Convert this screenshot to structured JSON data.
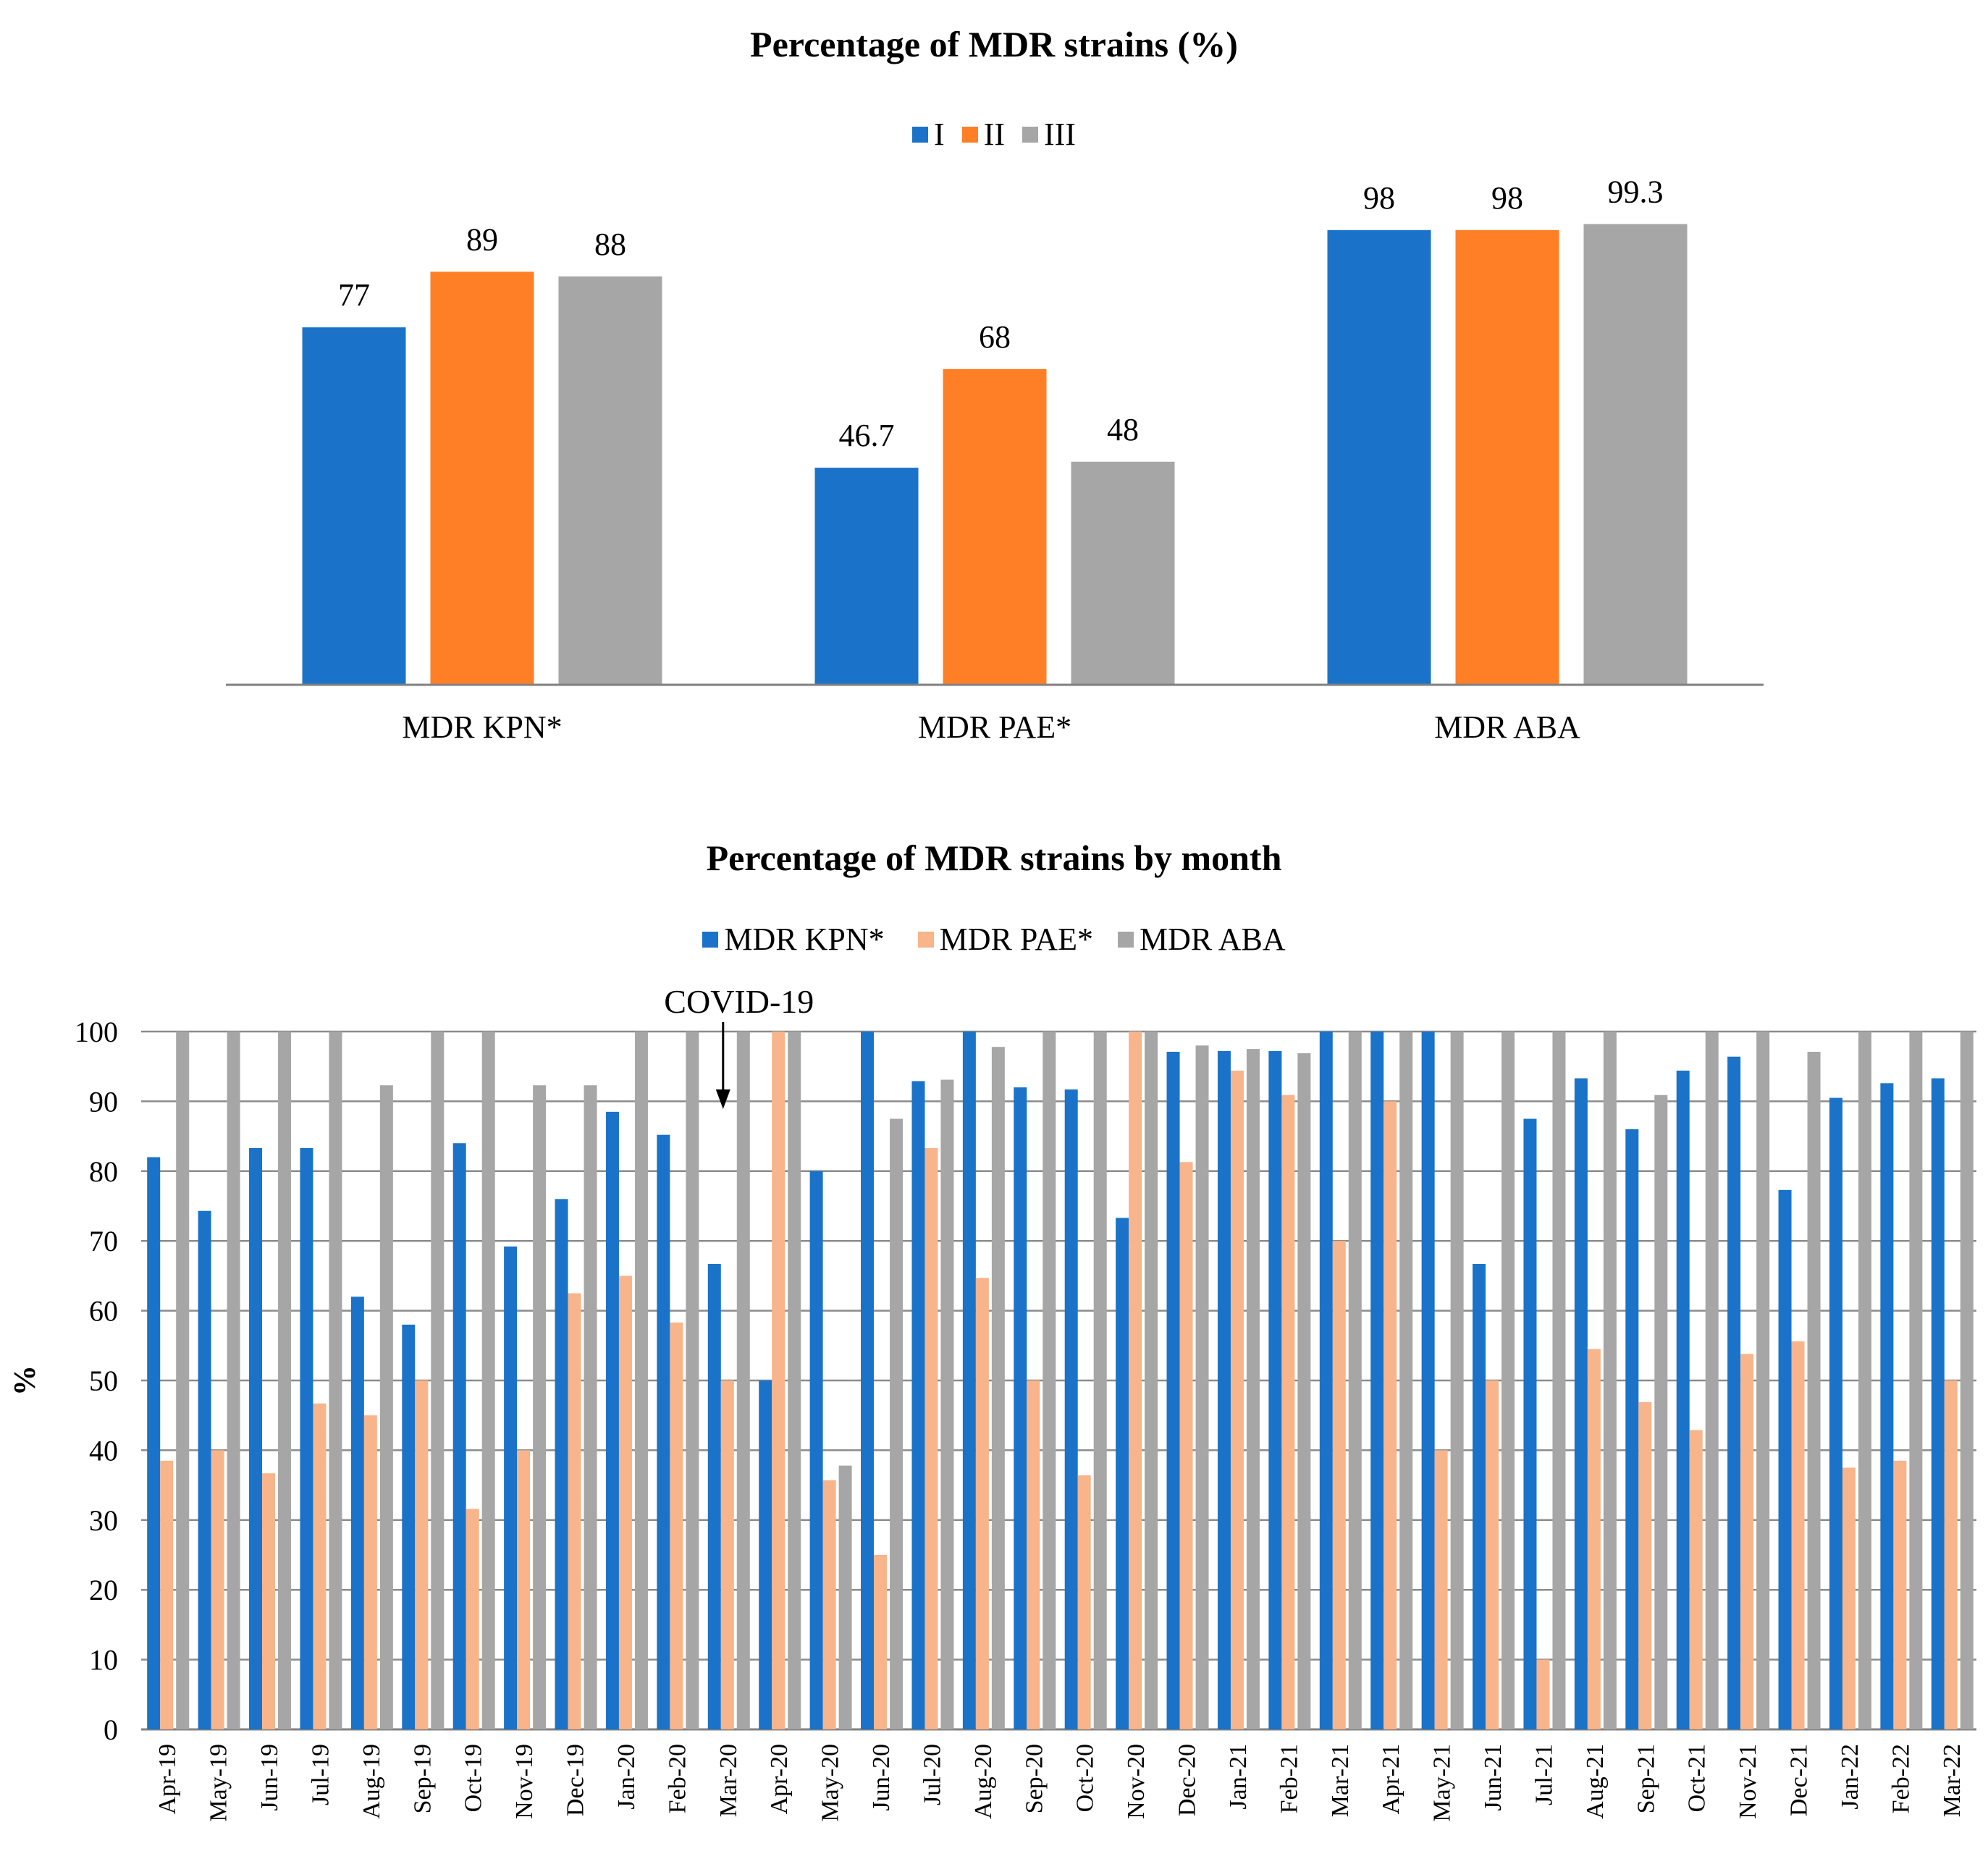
{
  "chart_data": [
    {
      "type": "bar",
      "title": "Percentage of MDR strains (%)",
      "categories": [
        "MDR KPN*",
        "MDR PAE*",
        "MDR ABA"
      ],
      "series": [
        {
          "name": "I",
          "color": "#1a73c8",
          "values": [
            77,
            46.7,
            98
          ]
        },
        {
          "name": "II",
          "color": "#ff7f27",
          "values": [
            89,
            68,
            98
          ]
        },
        {
          "name": "III",
          "color": "#a6a6a6",
          "values": [
            88,
            48,
            99.3
          ]
        }
      ],
      "data_labels": [
        [
          "77",
          "46.7",
          "98"
        ],
        [
          "89",
          "68",
          "98"
        ],
        [
          "88",
          "48",
          "99.3"
        ]
      ],
      "xlabel": "",
      "ylabel": "",
      "ylim": [
        0,
        100
      ],
      "grid": false,
      "legend": "top-center"
    },
    {
      "type": "bar",
      "title": "Percentage of MDR strains by month",
      "categories": [
        "Apr-19",
        "May-19",
        "Jun-19",
        "Jul-19",
        "Aug-19",
        "Sep-19",
        "Oct-19",
        "Nov-19",
        "Dec-19",
        "Jan-20",
        "Feb-20",
        "Mar-20",
        "Apr-20",
        "May-20",
        "Jun-20",
        "Jul-20",
        "Aug-20",
        "Sep-20",
        "Oct-20",
        "Nov-20",
        "Dec-20",
        "Jan-21",
        "Feb-21",
        "Mar-21",
        "Apr-21",
        "May-21",
        "Jun-21",
        "Jul-21",
        "Aug-21",
        "Sep-21",
        "Oct-21",
        "Nov-21",
        "Dec-21",
        "Jan-22",
        "Feb-22",
        "Mar-22"
      ],
      "series": [
        {
          "name": "MDR KPN*",
          "color": "#1a73c8",
          "values": [
            82,
            74.3,
            83.3,
            83.3,
            62,
            58,
            84,
            69.2,
            76,
            88.5,
            85.2,
            66.7,
            50,
            80,
            100,
            92.9,
            100,
            92,
            91.7,
            73.3,
            97.1,
            97.2,
            97.2,
            100,
            100,
            100,
            66.7,
            87.5,
            93.3,
            86,
            94.4,
            96.4,
            77.3,
            90.5,
            92.6,
            93.3
          ]
        },
        {
          "name": "MDR PAE*",
          "color": "#f8b48a",
          "values": [
            38.5,
            40,
            36.7,
            46.7,
            45,
            50,
            31.6,
            40,
            62.5,
            65,
            58.3,
            50,
            100,
            35.7,
            25,
            83.3,
            64.7,
            50,
            36.4,
            100,
            81.3,
            94.4,
            90.9,
            70,
            90,
            40,
            50,
            10,
            54.5,
            46.9,
            42.9,
            53.8,
            55.6,
            37.5,
            38.5,
            50
          ]
        },
        {
          "name": "MDR ABA",
          "color": "#a6a6a6",
          "values": [
            100,
            100,
            100,
            100,
            92.3,
            100,
            100,
            92.3,
            92.3,
            100,
            100,
            100,
            100,
            37.8,
            87.5,
            93.1,
            97.8,
            100,
            100,
            100,
            98,
            97.5,
            96.9,
            100,
            100,
            100,
            100,
            100,
            100,
            90.9,
            100,
            100,
            97.1,
            100,
            100,
            100
          ]
        }
      ],
      "xlabel": "",
      "ylabel": "%",
      "yticks": [
        0,
        10,
        20,
        30,
        40,
        50,
        60,
        70,
        80,
        90,
        100
      ],
      "ylim": [
        0,
        100
      ],
      "grid": true,
      "legend": "top-center",
      "annotation": {
        "text": "COVID-19",
        "category": "Mar-20"
      }
    }
  ]
}
